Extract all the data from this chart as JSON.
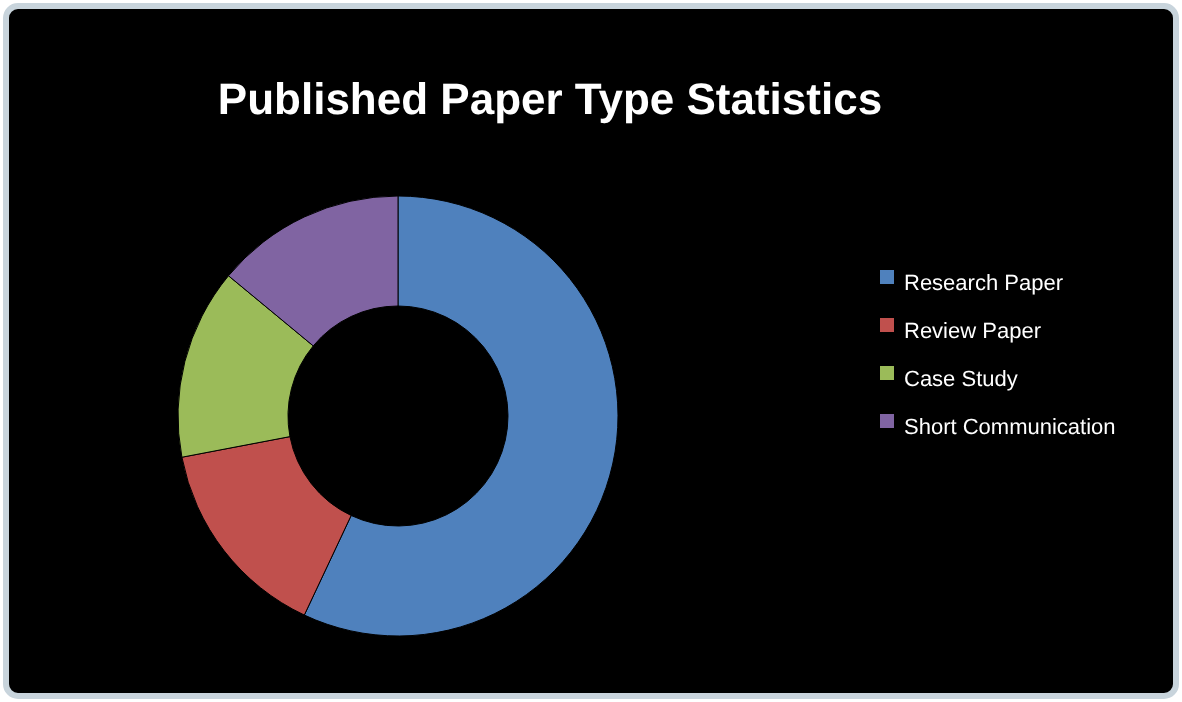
{
  "chart_data": {
    "type": "donut",
    "title": "Published Paper Type Statistics",
    "categories": [
      "Research Paper",
      "Review Paper",
      "Case Study",
      "Short Communication"
    ],
    "values": [
      57,
      15,
      14,
      14
    ],
    "colors": [
      "#4f81bd",
      "#c0504d",
      "#9bbb59",
      "#8064a2"
    ],
    "legend": "right"
  }
}
